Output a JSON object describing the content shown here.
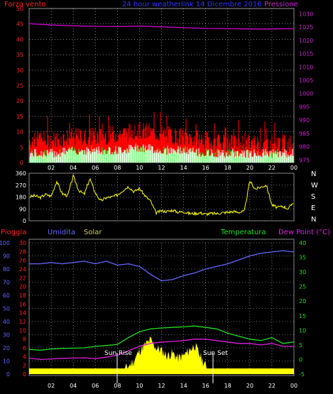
{
  "header": {
    "left_label": "Forza vento",
    "center_title": "24 hour weatherlink  14 Dicembre 2016",
    "right_label": "Pressione"
  },
  "bottom_header": {
    "rain_label": "Pioggia",
    "humidity_label": "Umidita",
    "solar_label": "Solar",
    "temperature_label": "Temperatura",
    "dewpoint_label": "Dew Point (°C)"
  },
  "compass": [
    "N",
    "W",
    "S",
    "E",
    "N"
  ],
  "annotations": {
    "sun_rise": "Sun Rise",
    "sun_set": "Sun Set"
  },
  "colors": {
    "wind": "#ff0000",
    "gust_fill": "#ff0000",
    "wind_avg": "#ffffff",
    "wind_low": "#22ff22",
    "pressure": "#cc00cc",
    "direction": "#ffff00",
    "humidity": "#6666ff",
    "temperature": "#22dd22",
    "dewpoint": "#dd22dd",
    "solar": "#ffff00",
    "rain": "#ff2222",
    "grid": "#ffffff"
  },
  "chart_data": [
    {
      "type": "line",
      "name_hint": "wind-pressure",
      "x_ticks": [
        "02",
        "04",
        "06",
        "08",
        "10",
        "12",
        "14",
        "16",
        "18",
        "20",
        "22",
        "00"
      ],
      "x_range_hours": [
        0,
        24
      ],
      "y_left": {
        "ticks": [
          0,
          5,
          10,
          15,
          20,
          25,
          30,
          35,
          40,
          45,
          50
        ],
        "range": [
          0,
          50
        ]
      },
      "y_right": {
        "ticks": [
          975,
          980,
          985,
          990,
          995,
          1000,
          1005,
          1010,
          1015,
          1020,
          1025,
          1030
        ],
        "range": [
          974,
          1032
        ]
      },
      "series": [
        {
          "key": "pressure",
          "axis": "right",
          "hours": [
            0,
            2,
            4,
            6,
            8,
            10,
            12,
            14,
            16,
            18,
            20,
            22,
            24
          ],
          "values": [
            1026.3,
            1025.8,
            1025.5,
            1025.3,
            1025.2,
            1025.4,
            1025.1,
            1024.8,
            1024.5,
            1024.4,
            1024.3,
            1024.3,
            1024.4
          ]
        }
      ],
      "wind_gust_profile": {
        "hours": [
          0,
          2,
          4,
          6,
          8,
          10,
          12,
          14,
          16,
          18,
          20,
          22,
          24
        ],
        "values": [
          7,
          7,
          8,
          8,
          9,
          10,
          9,
          8,
          7,
          6,
          6,
          6,
          6
        ]
      },
      "wind_avg_profile": {
        "hours": [
          0,
          2,
          4,
          6,
          8,
          10,
          12,
          14,
          16,
          18,
          20,
          22,
          24
        ],
        "values": [
          3,
          3,
          4,
          4,
          4,
          5,
          4,
          4,
          3,
          3,
          3,
          3,
          3
        ]
      },
      "grid": true
    },
    {
      "type": "scatter",
      "name_hint": "wind-direction",
      "y_ticks": [
        0,
        90,
        180,
        270,
        360
      ],
      "y_range": [
        0,
        360
      ],
      "hours": [
        0,
        0.5,
        1,
        1.5,
        2,
        2.5,
        3,
        3.5,
        4,
        4.5,
        5,
        5.5,
        6,
        6.5,
        7,
        7.5,
        8,
        8.5,
        9,
        9.5,
        10,
        10.5,
        11,
        11.5,
        12,
        12.5,
        13,
        13.5,
        14,
        14.5,
        15,
        15.5,
        16,
        16.5,
        17,
        17.5,
        18,
        18.5,
        19,
        19.5,
        20,
        20.5,
        21,
        21.5,
        22,
        22.5,
        23,
        23.5,
        24
      ],
      "values": [
        180,
        190,
        175,
        200,
        185,
        300,
        205,
        190,
        340,
        230,
        200,
        320,
        210,
        150,
        175,
        180,
        195,
        230,
        260,
        220,
        245,
        190,
        150,
        60,
        75,
        70,
        80,
        65,
        70,
        55,
        55,
        60,
        50,
        55,
        55,
        60,
        65,
        70,
        65,
        70,
        300,
        240,
        255,
        270,
        120,
        100,
        110,
        90,
        150
      ],
      "grid": true
    },
    {
      "type": "line",
      "name_hint": "humidity-temperature-solar",
      "x_ticks": [
        "02",
        "04",
        "06",
        "08",
        "10",
        "12",
        "14",
        "16",
        "18",
        "20",
        "22",
        "00"
      ],
      "x_range_hours": [
        0,
        24
      ],
      "y_humidity": {
        "ticks": [
          0,
          10,
          20,
          30,
          40,
          50,
          60,
          70,
          80,
          90,
          100
        ],
        "range": [
          0,
          100
        ]
      },
      "y_rain": {
        "ticks": [
          0,
          2,
          4,
          6,
          8,
          10,
          12,
          14,
          16,
          18,
          20,
          22,
          24,
          26,
          28,
          30
        ],
        "range": [
          0,
          30
        ]
      },
      "y_temp": {
        "ticks": [
          -5,
          0,
          5,
          10,
          15,
          20,
          25,
          30,
          35,
          40
        ],
        "range": [
          -5,
          40
        ]
      },
      "series": [
        {
          "key": "humidity",
          "axis": "humidity",
          "hours": [
            0,
            1,
            2,
            3,
            4,
            5,
            6,
            7,
            8,
            9,
            10,
            11,
            12,
            13,
            14,
            15,
            16,
            17,
            18,
            19,
            20,
            21,
            22,
            23,
            24
          ],
          "values": [
            84,
            84,
            85,
            84,
            85,
            86,
            84,
            86,
            83,
            84,
            82,
            76,
            71,
            72,
            75,
            77,
            80,
            82,
            84,
            87,
            90,
            92,
            93,
            94,
            93
          ]
        },
        {
          "key": "temperature",
          "axis": "temp",
          "hours": [
            0,
            1,
            2,
            3,
            4,
            5,
            6,
            7,
            8,
            9,
            10,
            11,
            12,
            13,
            14,
            15,
            16,
            17,
            18,
            19,
            20,
            21,
            22,
            23,
            24
          ],
          "values": [
            3.5,
            3.2,
            3.6,
            3.8,
            3.9,
            4.0,
            4.5,
            4.8,
            5.2,
            7.5,
            9.5,
            10.5,
            10.8,
            11.0,
            11.2,
            11.5,
            11.0,
            10.5,
            9.0,
            8.0,
            7.0,
            6.5,
            7.5,
            5.5,
            6.0
          ]
        },
        {
          "key": "dewpoint",
          "axis": "temp",
          "hours": [
            0,
            1,
            2,
            3,
            4,
            5,
            6,
            7,
            8,
            9,
            10,
            11,
            12,
            13,
            14,
            15,
            16,
            17,
            18,
            19,
            20,
            21,
            22,
            23,
            24
          ],
          "values": [
            0.5,
            0.0,
            0.2,
            0.4,
            0.5,
            0.6,
            0.3,
            0.8,
            1.5,
            3.0,
            4.5,
            5.5,
            6.0,
            6.2,
            6.5,
            7.0,
            7.0,
            6.5,
            6.0,
            5.5,
            5.5,
            5.0,
            5.5,
            4.5,
            4.5
          ]
        },
        {
          "key": "solar",
          "axis": "humidity",
          "hours": [
            0,
            8,
            8.5,
            9,
            9.5,
            10,
            10.5,
            11,
            11.5,
            12,
            12.5,
            13,
            13.5,
            14,
            14.5,
            15,
            15.5,
            16,
            16.5,
            24
          ],
          "values": [
            0,
            0,
            2,
            6,
            10,
            18,
            22,
            26,
            20,
            18,
            14,
            16,
            12,
            14,
            18,
            22,
            14,
            6,
            0,
            0
          ]
        }
      ],
      "rain_baseline": 0,
      "grid": true
    }
  ]
}
